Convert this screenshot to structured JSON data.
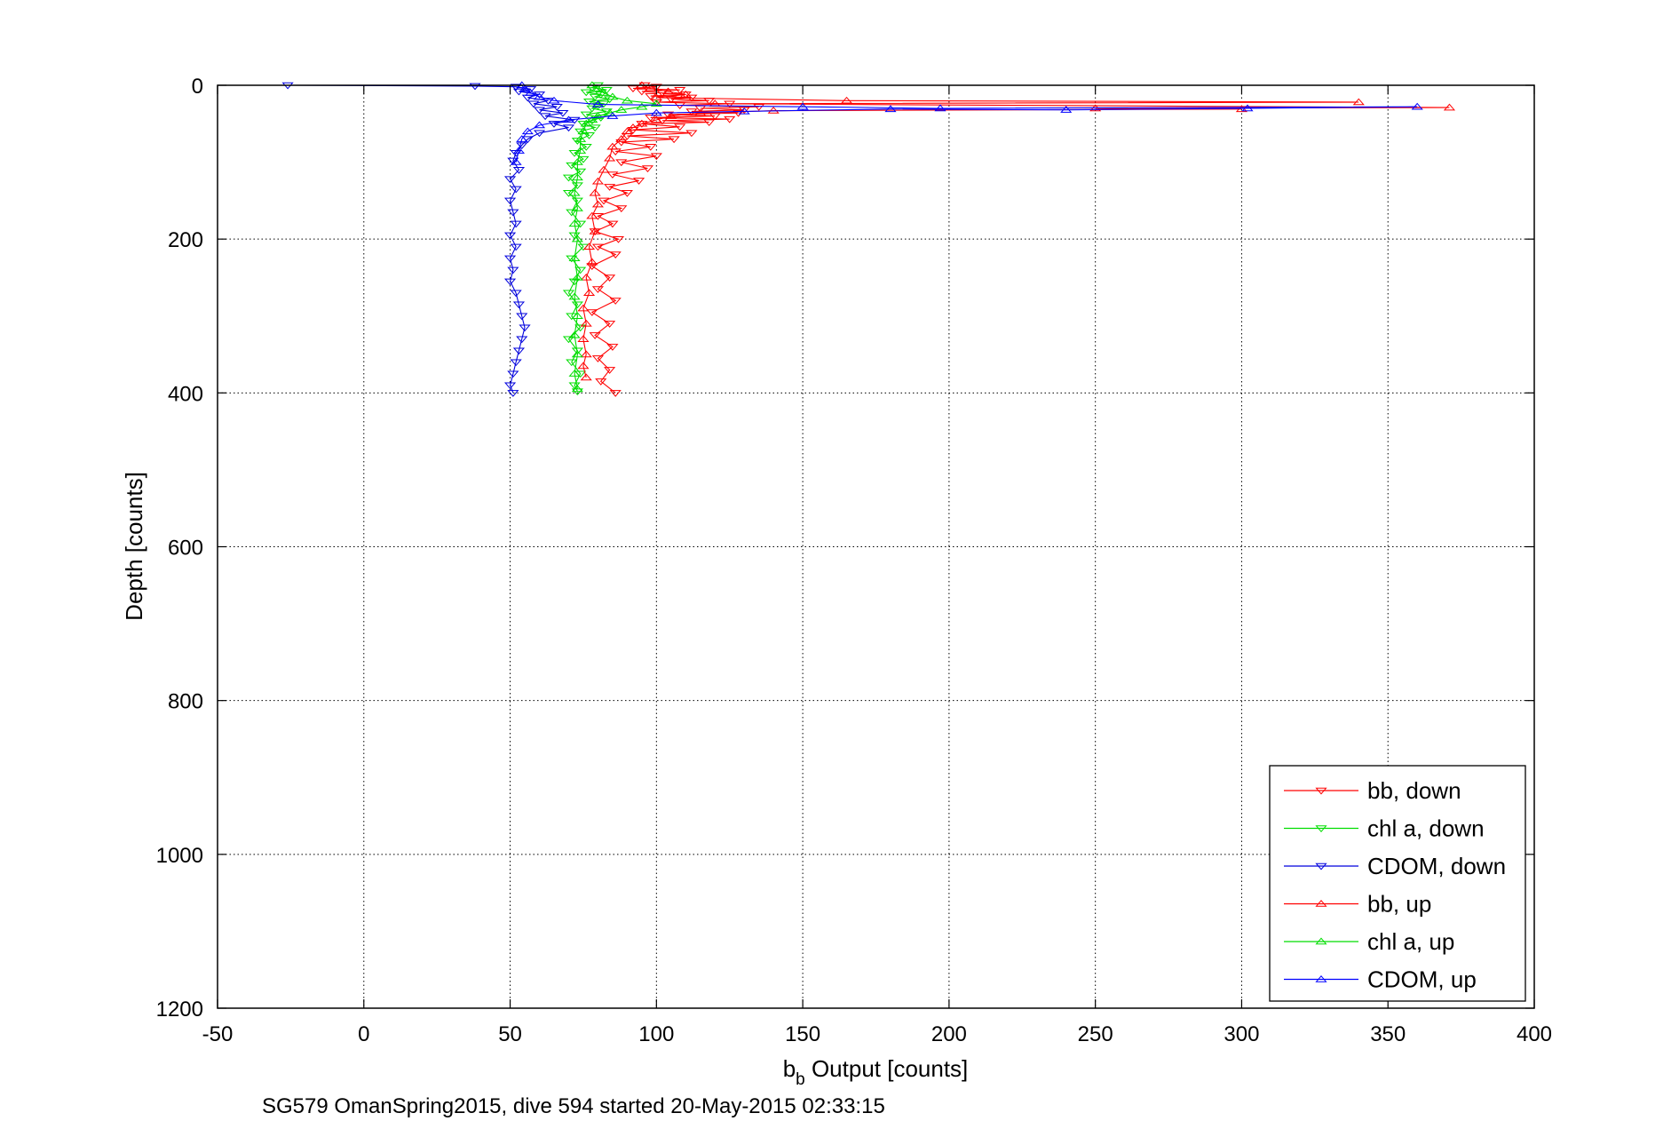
{
  "chart_data": {
    "type": "line",
    "title": "",
    "xlabel": "b_b Output [counts]",
    "xlabel_parts": {
      "base": "b",
      "sub": "b",
      "rest": " Output [counts]"
    },
    "ylabel": "Depth [counts]",
    "caption": "SG579 OmanSpring2015, dive 594 started 20-May-2015 02:33:15",
    "xlim": [
      -50,
      400
    ],
    "ylim": [
      0,
      1200
    ],
    "y_reversed": true,
    "xticks": [
      -50,
      0,
      50,
      100,
      150,
      200,
      250,
      300,
      350,
      400
    ],
    "yticks": [
      0,
      200,
      400,
      600,
      800,
      1000,
      1200
    ],
    "grid": true,
    "legend_position": "bottom-right",
    "series": [
      {
        "name": "bb, down",
        "color": "#ff0000",
        "marker": "triangle-down",
        "points": [
          [
            96,
            0
          ],
          [
            100,
            2
          ],
          [
            92,
            4
          ],
          [
            108,
            6
          ],
          [
            95,
            8
          ],
          [
            102,
            10
          ],
          [
            110,
            12
          ],
          [
            98,
            14
          ],
          [
            112,
            16
          ],
          [
            105,
            18
          ],
          [
            118,
            20
          ],
          [
            100,
            22
          ],
          [
            125,
            24
          ],
          [
            108,
            26
          ],
          [
            135,
            28
          ],
          [
            115,
            30
          ],
          [
            130,
            32
          ],
          [
            112,
            34
          ],
          [
            128,
            36
          ],
          [
            104,
            38
          ],
          [
            120,
            40
          ],
          [
            98,
            42
          ],
          [
            125,
            44
          ],
          [
            102,
            46
          ],
          [
            118,
            48
          ],
          [
            95,
            50
          ],
          [
            108,
            54
          ],
          [
            92,
            58
          ],
          [
            112,
            62
          ],
          [
            90,
            66
          ],
          [
            106,
            70
          ],
          [
            88,
            74
          ],
          [
            98,
            80
          ],
          [
            86,
            86
          ],
          [
            100,
            92
          ],
          [
            88,
            100
          ],
          [
            97,
            108
          ],
          [
            85,
            116
          ],
          [
            94,
            124
          ],
          [
            84,
            132
          ],
          [
            90,
            140
          ],
          [
            82,
            150
          ],
          [
            88,
            160
          ],
          [
            80,
            170
          ],
          [
            85,
            180
          ],
          [
            79,
            190
          ],
          [
            87,
            200
          ],
          [
            80,
            210
          ],
          [
            86,
            220
          ],
          [
            78,
            235
          ],
          [
            84,
            250
          ],
          [
            80,
            265
          ],
          [
            86,
            280
          ],
          [
            78,
            295
          ],
          [
            84,
            310
          ],
          [
            79,
            325
          ],
          [
            85,
            340
          ],
          [
            80,
            355
          ],
          [
            84,
            370
          ],
          [
            81,
            385
          ],
          [
            86,
            400
          ]
        ]
      },
      {
        "name": "chl a, down",
        "color": "#00dd00",
        "marker": "triangle-down",
        "points": [
          [
            80,
            0
          ],
          [
            78,
            3
          ],
          [
            83,
            6
          ],
          [
            76,
            9
          ],
          [
            81,
            12
          ],
          [
            79,
            15
          ],
          [
            84,
            18
          ],
          [
            77,
            21
          ],
          [
            82,
            24
          ],
          [
            80,
            27
          ],
          [
            78,
            30
          ],
          [
            83,
            34
          ],
          [
            76,
            38
          ],
          [
            81,
            42
          ],
          [
            78,
            46
          ],
          [
            75,
            50
          ],
          [
            79,
            55
          ],
          [
            74,
            60
          ],
          [
            77,
            65
          ],
          [
            73,
            72
          ],
          [
            76,
            80
          ],
          [
            72,
            88
          ],
          [
            75,
            96
          ],
          [
            71,
            104
          ],
          [
            74,
            112
          ],
          [
            70,
            120
          ],
          [
            73,
            130
          ],
          [
            70,
            140
          ],
          [
            73,
            150
          ],
          [
            71,
            165
          ],
          [
            74,
            180
          ],
          [
            72,
            195
          ],
          [
            75,
            210
          ],
          [
            71,
            225
          ],
          [
            74,
            240
          ],
          [
            72,
            255
          ],
          [
            70,
            270
          ],
          [
            73,
            285
          ],
          [
            71,
            300
          ],
          [
            74,
            315
          ],
          [
            70,
            330
          ],
          [
            73,
            345
          ],
          [
            71,
            360
          ],
          [
            74,
            375
          ],
          [
            72,
            390
          ],
          [
            73,
            398
          ]
        ]
      },
      {
        "name": "CDOM, down",
        "color": "#0000dd",
        "marker": "triangle-down",
        "points": [
          [
            -26,
            0
          ],
          [
            38,
            1
          ],
          [
            52,
            2
          ],
          [
            57,
            5
          ],
          [
            53,
            8
          ],
          [
            60,
            12
          ],
          [
            56,
            16
          ],
          [
            63,
            20
          ],
          [
            58,
            24
          ],
          [
            66,
            28
          ],
          [
            60,
            32
          ],
          [
            68,
            36
          ],
          [
            62,
            40
          ],
          [
            72,
            45
          ],
          [
            65,
            50
          ],
          [
            70,
            55
          ],
          [
            60,
            62
          ],
          [
            56,
            70
          ],
          [
            54,
            78
          ],
          [
            52,
            88
          ],
          [
            51,
            98
          ],
          [
            53,
            110
          ],
          [
            50,
            122
          ],
          [
            52,
            135
          ],
          [
            50,
            150
          ],
          [
            51,
            165
          ],
          [
            52,
            180
          ],
          [
            50,
            195
          ],
          [
            52,
            210
          ],
          [
            50,
            225
          ],
          [
            51,
            240
          ],
          [
            50,
            255
          ],
          [
            52,
            270
          ],
          [
            53,
            285
          ],
          [
            54,
            300
          ],
          [
            55,
            315
          ],
          [
            54,
            330
          ],
          [
            53,
            345
          ],
          [
            52,
            360
          ],
          [
            51,
            375
          ],
          [
            50,
            390
          ],
          [
            51,
            400
          ]
        ]
      },
      {
        "name": "bb, up",
        "color": "#ff0000",
        "marker": "triangle-up",
        "points": [
          [
            95,
            0
          ],
          [
            98,
            4
          ],
          [
            104,
            8
          ],
          [
            110,
            12
          ],
          [
            100,
            16
          ],
          [
            165,
            20
          ],
          [
            340,
            22
          ],
          [
            120,
            24
          ],
          [
            371,
            29
          ],
          [
            250,
            30
          ],
          [
            300,
            31
          ],
          [
            140,
            33
          ],
          [
            115,
            36
          ],
          [
            105,
            40
          ],
          [
            100,
            45
          ],
          [
            95,
            50
          ],
          [
            92,
            55
          ],
          [
            90,
            60
          ],
          [
            88,
            70
          ],
          [
            85,
            80
          ],
          [
            84,
            95
          ],
          [
            82,
            110
          ],
          [
            80,
            125
          ],
          [
            79,
            140
          ],
          [
            80,
            155
          ],
          [
            78,
            170
          ],
          [
            79,
            190
          ],
          [
            77,
            210
          ],
          [
            78,
            230
          ],
          [
            76,
            250
          ],
          [
            77,
            270
          ],
          [
            75,
            290
          ],
          [
            76,
            310
          ],
          [
            75,
            330
          ],
          [
            76,
            350
          ],
          [
            75,
            365
          ],
          [
            76,
            380
          ]
        ]
      },
      {
        "name": "chl a, up",
        "color": "#00dd00",
        "marker": "triangle-up",
        "points": [
          [
            78,
            0
          ],
          [
            80,
            5
          ],
          [
            82,
            10
          ],
          [
            85,
            15
          ],
          [
            90,
            20
          ],
          [
            100,
            24
          ],
          [
            95,
            28
          ],
          [
            88,
            32
          ],
          [
            84,
            36
          ],
          [
            80,
            40
          ],
          [
            78,
            45
          ],
          [
            76,
            50
          ],
          [
            75,
            60
          ],
          [
            74,
            70
          ],
          [
            74,
            85
          ],
          [
            73,
            100
          ],
          [
            73,
            120
          ],
          [
            72,
            140
          ],
          [
            73,
            160
          ],
          [
            72,
            180
          ],
          [
            73,
            200
          ],
          [
            72,
            225
          ],
          [
            73,
            250
          ],
          [
            72,
            275
          ],
          [
            73,
            300
          ],
          [
            72,
            325
          ],
          [
            73,
            350
          ],
          [
            72,
            375
          ],
          [
            73,
            395
          ]
        ]
      },
      {
        "name": "CDOM, up",
        "color": "#0000ff",
        "marker": "triangle-up",
        "points": [
          [
            54,
            0
          ],
          [
            55,
            5
          ],
          [
            57,
            10
          ],
          [
            60,
            15
          ],
          [
            65,
            20
          ],
          [
            80,
            25
          ],
          [
            150,
            28
          ],
          [
            197,
            30
          ],
          [
            360,
            28
          ],
          [
            302,
            30
          ],
          [
            240,
            32
          ],
          [
            180,
            31
          ],
          [
            130,
            34
          ],
          [
            100,
            36
          ],
          [
            85,
            40
          ],
          [
            70,
            45
          ],
          [
            60,
            52
          ],
          [
            56,
            60
          ],
          [
            54,
            70
          ],
          [
            53,
            85
          ],
          [
            52,
            100
          ]
        ]
      }
    ]
  }
}
